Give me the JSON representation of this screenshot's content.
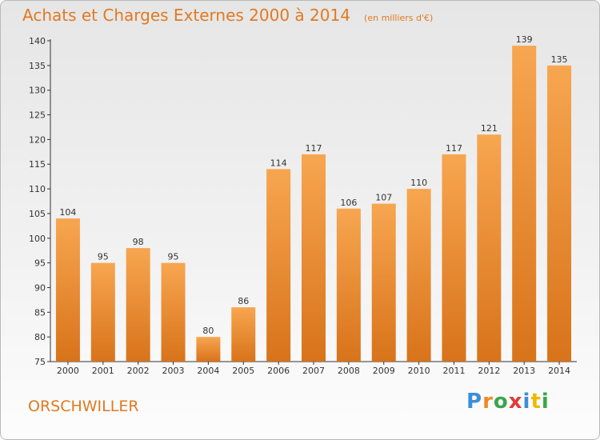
{
  "header": {
    "title": "Achats et Charges Externes 2000 à 2014",
    "unit": "(en milliers d'€)"
  },
  "footer": {
    "commune": "ORSCHWILLER",
    "logo_letters": [
      "P",
      "r",
      "o",
      "x",
      "i",
      "t",
      "i"
    ],
    "logo_colors": [
      "#3b8fd6",
      "#f08a24",
      "#3aa64a",
      "#e23a3a",
      "#3b8fd6",
      "#f0b800",
      "#3aa64a"
    ]
  },
  "colors": {
    "bar_light": "#f7a650",
    "bar_dark": "#d8731a",
    "axis": "#333333",
    "title": "#e07a21"
  },
  "chart_data": {
    "type": "bar",
    "title": "Achats et Charges Externes 2000 à 2014",
    "subtitle": "(en milliers d'€)",
    "xlabel": "",
    "ylabel": "",
    "categories": [
      "2000",
      "2001",
      "2002",
      "2003",
      "2004",
      "2005",
      "2006",
      "2007",
      "2008",
      "2009",
      "2010",
      "2011",
      "2012",
      "2013",
      "2014"
    ],
    "values": [
      104,
      95,
      98,
      95,
      80,
      86,
      114,
      117,
      106,
      107,
      110,
      117,
      121,
      139,
      135
    ],
    "data_labels": [
      "104",
      "95",
      "98",
      "95",
      "80",
      "86",
      "114",
      "117",
      "106",
      "107",
      "110",
      "117",
      "121",
      "139",
      "135"
    ],
    "ylim": [
      75,
      140
    ],
    "yticks": [
      75,
      80,
      85,
      90,
      95,
      100,
      105,
      110,
      115,
      120,
      125,
      130,
      135,
      140
    ],
    "grid": false,
    "legend": "none"
  }
}
